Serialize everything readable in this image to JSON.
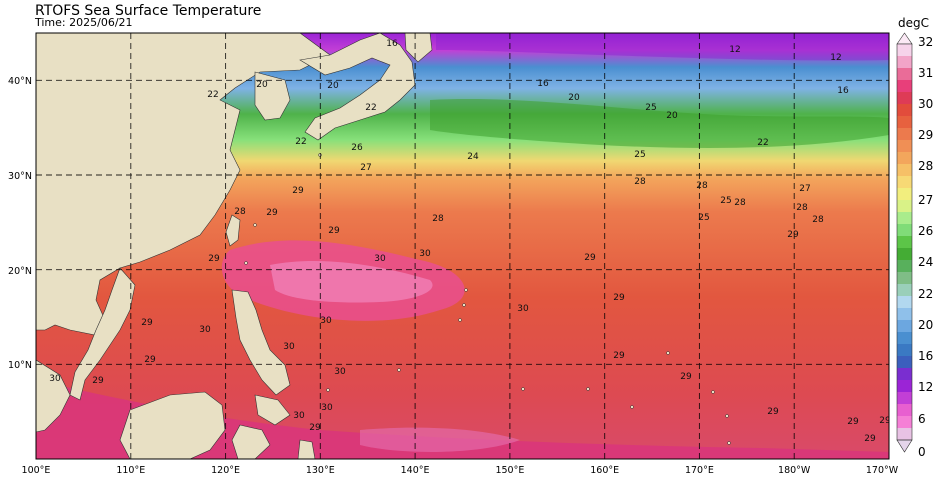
{
  "title": "RTOFS Sea Surface Temperature",
  "subtitle": "Time: 2025/06/21",
  "map": {
    "lon_ticks": [
      "100°E",
      "110°E",
      "120°E",
      "130°E",
      "140°E",
      "150°E",
      "160°E",
      "170°E",
      "180°W",
      "170°W"
    ],
    "lat_ticks": [
      "40°N",
      "30°N",
      "20°N",
      "10°N"
    ]
  },
  "colorbar": {
    "unit": "degC",
    "ticks": [
      "32",
      "31",
      "30",
      "29",
      "28",
      "27",
      "26",
      "24",
      "22",
      "20",
      "16",
      "12",
      "6",
      "0"
    ]
  },
  "contour_labels": [
    {
      "text": "16"
    },
    {
      "text": "12"
    },
    {
      "text": "12"
    },
    {
      "text": "16"
    },
    {
      "text": "16"
    },
    {
      "text": "20"
    },
    {
      "text": "22"
    },
    {
      "text": "20"
    },
    {
      "text": "22"
    },
    {
      "text": "20"
    },
    {
      "text": "25"
    },
    {
      "text": "20"
    },
    {
      "text": "22"
    },
    {
      "text": "24"
    },
    {
      "text": "25"
    },
    {
      "text": "22"
    },
    {
      "text": "26"
    },
    {
      "text": "27"
    },
    {
      "text": "28"
    },
    {
      "text": "28"
    },
    {
      "text": "28"
    },
    {
      "text": "27"
    },
    {
      "text": "28"
    },
    {
      "text": "29"
    },
    {
      "text": "29"
    },
    {
      "text": "28"
    },
    {
      "text": "29"
    },
    {
      "text": "29"
    },
    {
      "text": "30"
    },
    {
      "text": "30"
    },
    {
      "text": "29"
    },
    {
      "text": "30"
    },
    {
      "text": "29"
    },
    {
      "text": "29"
    },
    {
      "text": "30"
    },
    {
      "text": "29"
    },
    {
      "text": "29"
    },
    {
      "text": "29"
    },
    {
      "text": "30"
    },
    {
      "text": "30"
    },
    {
      "text": "30"
    },
    {
      "text": "29"
    },
    {
      "text": "29"
    },
    {
      "text": "30"
    },
    {
      "text": "29"
    },
    {
      "text": "29"
    },
    {
      "text": "29"
    },
    {
      "text": "30"
    },
    {
      "text": "30"
    },
    {
      "text": "29"
    },
    {
      "text": "28"
    },
    {
      "text": "28"
    },
    {
      "text": "25"
    },
    {
      "text": "25"
    },
    {
      "text": "29"
    }
  ]
}
